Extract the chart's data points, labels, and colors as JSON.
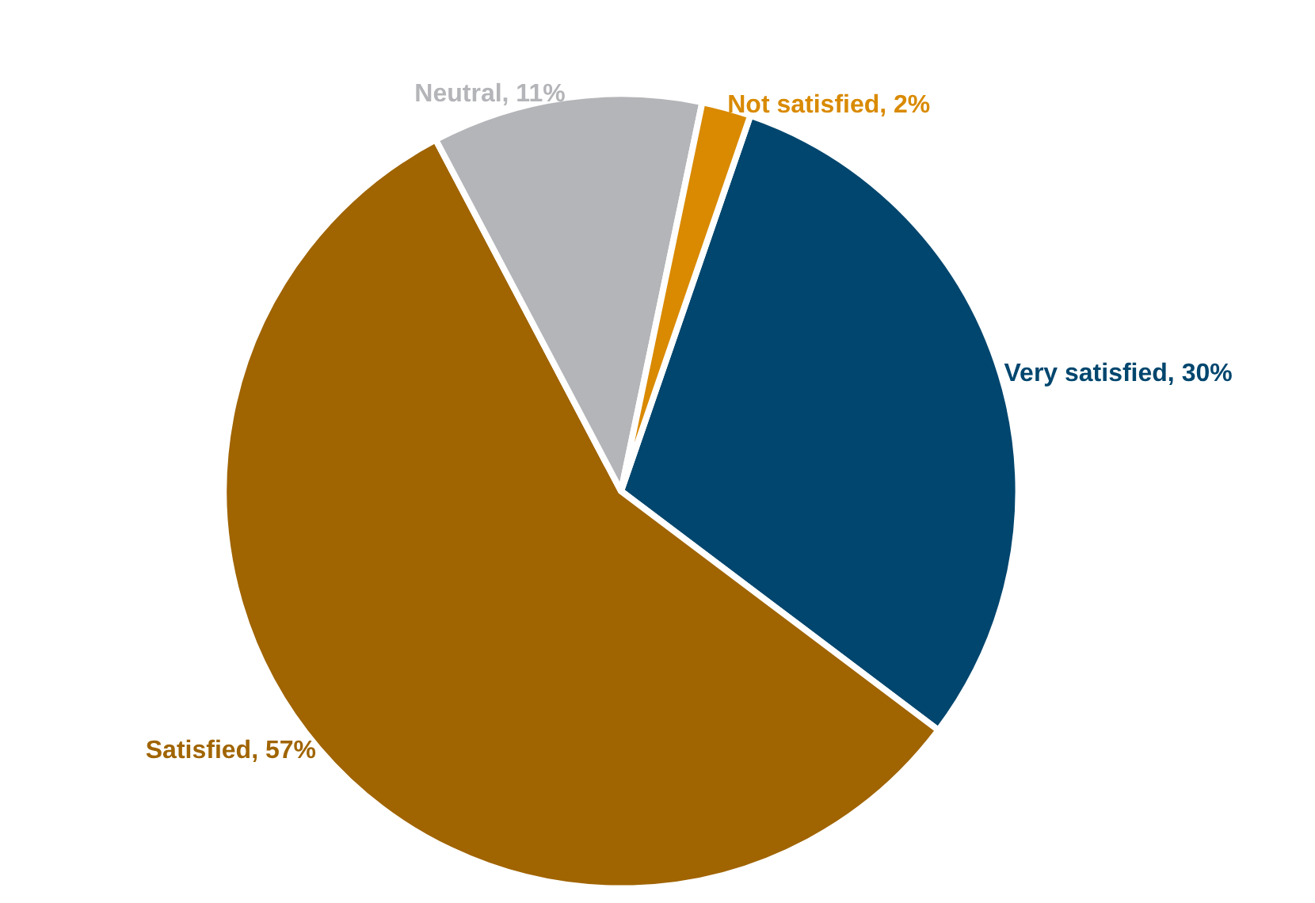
{
  "chart_data": {
    "type": "pie",
    "categories": [
      "Very satisfied",
      "Satisfied",
      "Neutral",
      "Not satisfied"
    ],
    "values": [
      30,
      57,
      11,
      2
    ],
    "value_labels": [
      "30%",
      "57%",
      "11%",
      "2%"
    ],
    "colors": [
      "#00466e",
      "#a06400",
      "#b4b5b8",
      "#d98a00"
    ],
    "legend": false
  }
}
